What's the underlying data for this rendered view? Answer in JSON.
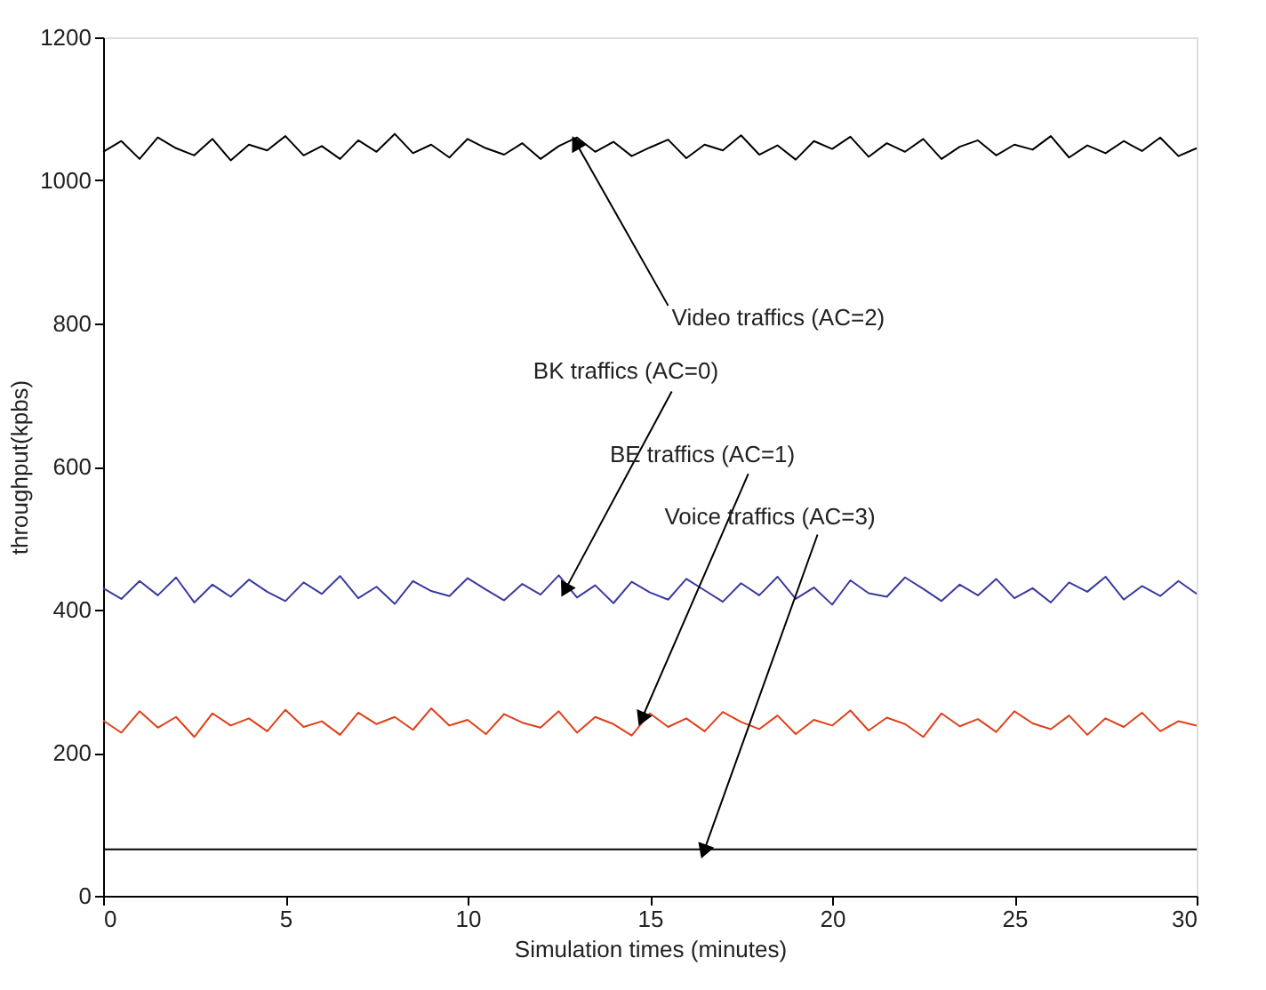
{
  "chart_data": {
    "type": "line",
    "xlabel": "Simulation times (minutes)",
    "ylabel": "throughput(kpbs)",
    "x": [
      0,
      0.5,
      1,
      1.5,
      2,
      2.5,
      3,
      3.5,
      4,
      4.5,
      5,
      5.5,
      6,
      6.5,
      7,
      7.5,
      8,
      8.5,
      9,
      9.5,
      10,
      10.5,
      11,
      11.5,
      12,
      12.5,
      13,
      13.5,
      14,
      14.5,
      15,
      15.5,
      16,
      16.5,
      17,
      17.5,
      18,
      18.5,
      19,
      19.5,
      20,
      20.5,
      21,
      21.5,
      22,
      22.5,
      23,
      23.5,
      24,
      24.5,
      25,
      25.5,
      26,
      26.5,
      27,
      27.5,
      28,
      28.5,
      29,
      29.5,
      30
    ],
    "series": [
      {
        "color": "#000000",
        "values": [
          1040,
          1055,
          1030,
          1060,
          1045,
          1035,
          1058,
          1028,
          1050,
          1042,
          1062,
          1035,
          1048,
          1030,
          1056,
          1040,
          1065,
          1038,
          1050,
          1032,
          1058,
          1045,
          1036,
          1052,
          1030,
          1048,
          1060,
          1040,
          1054,
          1034,
          1046,
          1057,
          1031,
          1050,
          1042,
          1063,
          1036,
          1049,
          1029,
          1055,
          1044,
          1061,
          1033,
          1052,
          1040,
          1058,
          1030,
          1047,
          1056,
          1035,
          1050,
          1043,
          1062,
          1032,
          1049,
          1038,
          1055,
          1041,
          1060,
          1034,
          1045
        ]
      },
      {
        "color": "#3a3aa0",
        "values": [
          430,
          415,
          440,
          420,
          445,
          410,
          435,
          418,
          442,
          425,
          412,
          438,
          422,
          447,
          416,
          432,
          408,
          440,
          426,
          419,
          444,
          428,
          413,
          436,
          421,
          448,
          417,
          434,
          409,
          439,
          424,
          414,
          443,
          427,
          411,
          437,
          420,
          446,
          415,
          431,
          407,
          441,
          423,
          418,
          445,
          429,
          412,
          435,
          420,
          443,
          416,
          430,
          410,
          438,
          425,
          446,
          414,
          433,
          419,
          440,
          422
        ]
      },
      {
        "color": "#e0401a",
        "values": [
          245,
          228,
          258,
          235,
          250,
          222,
          255,
          238,
          248,
          230,
          260,
          236,
          244,
          225,
          256,
          240,
          250,
          232,
          262,
          238,
          246,
          226,
          254,
          242,
          235,
          258,
          228,
          250,
          240,
          224,
          255,
          236,
          248,
          230,
          257,
          243,
          233,
          252,
          226,
          246,
          238,
          259,
          231,
          249,
          240,
          222,
          255,
          237,
          247,
          229,
          258,
          241,
          233,
          252,
          225,
          248,
          236,
          256,
          230,
          244,
          238
        ]
      },
      {
        "color": "#000000",
        "x": [
          0,
          30
        ],
        "values": [
          65,
          65
        ]
      }
    ],
    "xlim": [
      0,
      30
    ],
    "ylim": [
      0,
      1200
    ],
    "xticks": [
      0,
      5,
      10,
      15,
      20,
      25,
      30
    ],
    "yticks": [
      0,
      200,
      400,
      600,
      800,
      1000,
      1200
    ],
    "grid": false,
    "marker": "none",
    "line_style": "solid",
    "annotations": [
      {
        "text": "Video traffics (AC=2)",
        "x": 13,
        "y": 1050
      },
      {
        "text": "BK traffics (AC=0)",
        "x": 12.7,
        "y": 430
      },
      {
        "text": "BE traffics (AC=1)",
        "x": 14.8,
        "y": 250
      },
      {
        "text": "Voice traffics (AC=3)",
        "x": 16.5,
        "y": 65
      }
    ]
  }
}
